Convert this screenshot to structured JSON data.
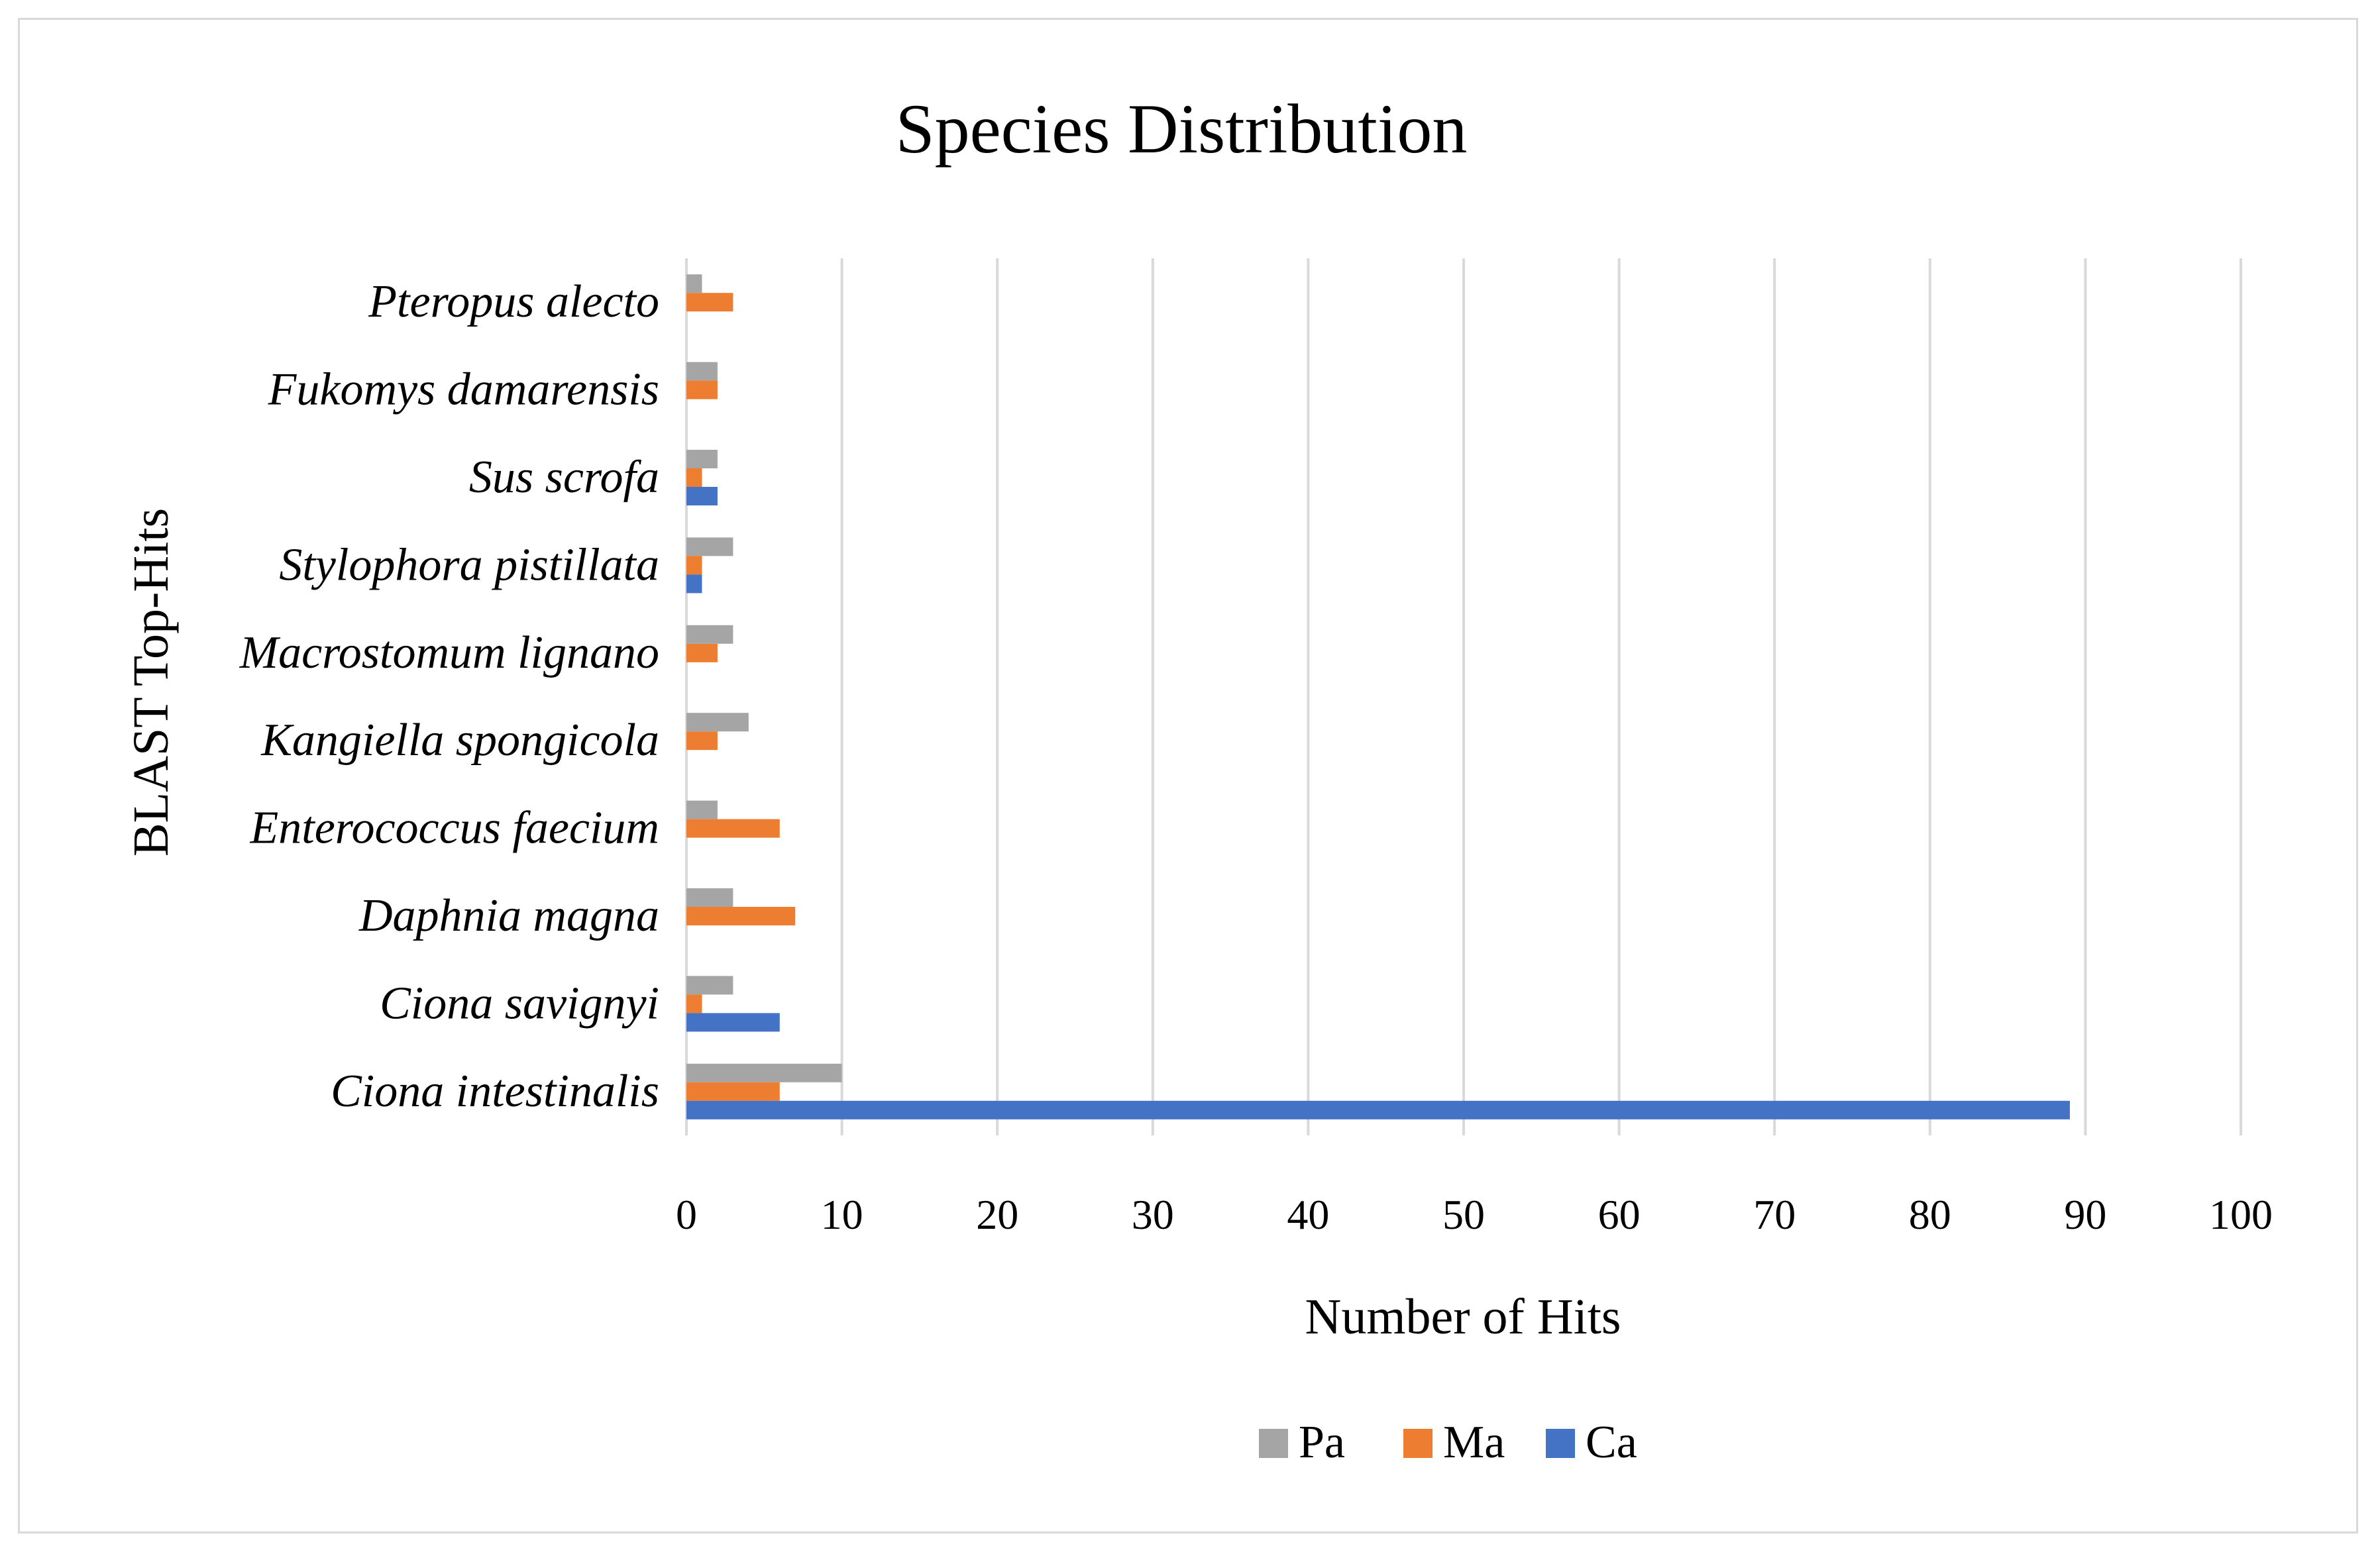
{
  "chart_data": {
    "type": "bar",
    "orientation": "horizontal",
    "title": "Species Distribution",
    "xlabel": "Number of Hits",
    "ylabel": "BLAST Top-Hits",
    "xlim": [
      0,
      100
    ],
    "xticks": [
      0,
      10,
      20,
      30,
      40,
      50,
      60,
      70,
      80,
      90,
      100
    ],
    "grid": "vertical major gridlines",
    "legend_position": "bottom",
    "categories": [
      "Ciona intestinalis",
      "Ciona savignyi",
      "Daphnia magna",
      "Enterococcus faecium",
      "Kangiella spongicola",
      "Macrostomum lignano",
      "Stylophora pistillata",
      "Sus scrofa",
      "Fukomys damarensis",
      "Pteropus alecto"
    ],
    "series": [
      {
        "name": "Ca",
        "color": "#4472c4",
        "values": [
          89,
          6,
          0,
          0,
          0,
          0,
          1,
          2,
          0,
          0
        ]
      },
      {
        "name": "Ma",
        "color": "#ed7d31",
        "values": [
          6,
          1,
          7,
          6,
          2,
          2,
          1,
          1,
          2,
          3
        ]
      },
      {
        "name": "Pa",
        "color": "#a5a5a5",
        "values": [
          10,
          3,
          3,
          2,
          4,
          3,
          3,
          2,
          2,
          1
        ]
      }
    ],
    "legend_order": [
      "Pa",
      "Ma",
      "Ca"
    ]
  }
}
